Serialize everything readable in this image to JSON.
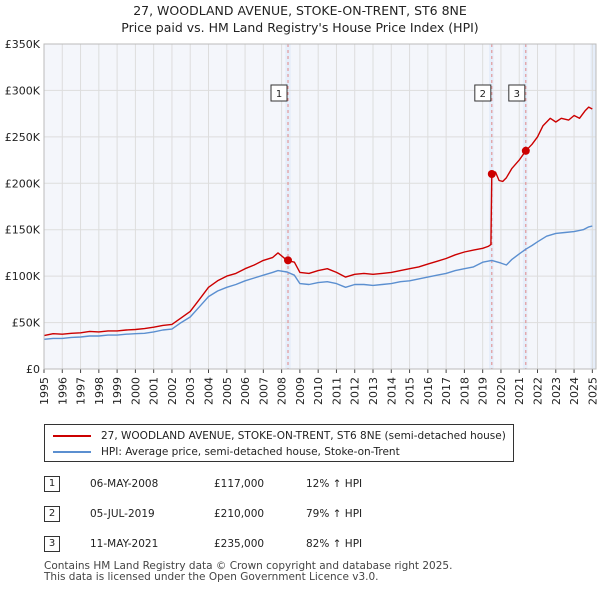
{
  "title": {
    "line1": "27, WOODLAND AVENUE, STOKE-ON-TRENT, ST6 8NE",
    "line2": "Price paid vs. HM Land Registry's House Price Index (HPI)"
  },
  "chart_data": {
    "type": "line",
    "xlim": [
      1995,
      2025.2
    ],
    "ylim": [
      0,
      350000
    ],
    "x_ticks": [
      1995,
      1996,
      1997,
      1998,
      1999,
      2000,
      2001,
      2002,
      2003,
      2004,
      2005,
      2006,
      2007,
      2008,
      2009,
      2010,
      2011,
      2012,
      2013,
      2014,
      2015,
      2016,
      2017,
      2018,
      2019,
      2020,
      2021,
      2022,
      2023,
      2024,
      2025
    ],
    "y_ticks": [
      {
        "value": 0,
        "label": "£0"
      },
      {
        "value": 50000,
        "label": "£50K"
      },
      {
        "value": 100000,
        "label": "£100K"
      },
      {
        "value": 150000,
        "label": "£150K"
      },
      {
        "value": 200000,
        "label": "£200K"
      },
      {
        "value": 250000,
        "label": "£250K"
      },
      {
        "value": 300000,
        "label": "£300K"
      },
      {
        "value": 350000,
        "label": "£350K"
      }
    ],
    "grid": true,
    "colors": {
      "property": "#cc0000",
      "hpi": "#5b8fd0",
      "grid": "#dddddd",
      "bg": "#f4f6fb",
      "vline": "#e08888",
      "shade": "#e6eefa"
    },
    "series": [
      {
        "name": "27, WOODLAND AVENUE, STOKE-ON-TRENT, ST6 8NE (semi-detached house)",
        "color": "#cc0000",
        "points": [
          [
            1995,
            36000
          ],
          [
            1995.5,
            38000
          ],
          [
            1996,
            37500
          ],
          [
            1996.5,
            38500
          ],
          [
            1997,
            39000
          ],
          [
            1997.5,
            40500
          ],
          [
            1998,
            40000
          ],
          [
            1998.5,
            41000
          ],
          [
            1999,
            41000
          ],
          [
            1999.5,
            42000
          ],
          [
            2000,
            42500
          ],
          [
            2000.5,
            43500
          ],
          [
            2001,
            45000
          ],
          [
            2001.5,
            47000
          ],
          [
            2002,
            48000
          ],
          [
            2002.5,
            55000
          ],
          [
            2003,
            62000
          ],
          [
            2003.5,
            75000
          ],
          [
            2004,
            88000
          ],
          [
            2004.5,
            95000
          ],
          [
            2005,
            100000
          ],
          [
            2005.5,
            103000
          ],
          [
            2006,
            108000
          ],
          [
            2006.5,
            112000
          ],
          [
            2007,
            117000
          ],
          [
            2007.5,
            120000
          ],
          [
            2007.8,
            125000
          ],
          [
            2008.3,
            117000
          ],
          [
            2008.7,
            115000
          ],
          [
            2009,
            104000
          ],
          [
            2009.5,
            103000
          ],
          [
            2010,
            106000
          ],
          [
            2010.5,
            108000
          ],
          [
            2011,
            104000
          ],
          [
            2011.5,
            99000
          ],
          [
            2012,
            102000
          ],
          [
            2012.5,
            103000
          ],
          [
            2013,
            102000
          ],
          [
            2013.5,
            103000
          ],
          [
            2014,
            104000
          ],
          [
            2014.5,
            106000
          ],
          [
            2015,
            108000
          ],
          [
            2015.5,
            110000
          ],
          [
            2016,
            113000
          ],
          [
            2016.5,
            116000
          ],
          [
            2017,
            119000
          ],
          [
            2017.5,
            123000
          ],
          [
            2018,
            126000
          ],
          [
            2018.5,
            128000
          ],
          [
            2019,
            130000
          ],
          [
            2019.3,
            132000
          ],
          [
            2019.45,
            134000
          ],
          [
            2019.5,
            210000
          ],
          [
            2019.7,
            212000
          ],
          [
            2019.9,
            203000
          ],
          [
            2020.1,
            202000
          ],
          [
            2020.3,
            206000
          ],
          [
            2020.6,
            216000
          ],
          [
            2021,
            225000
          ],
          [
            2021.36,
            235000
          ],
          [
            2021.7,
            242000
          ],
          [
            2022,
            250000
          ],
          [
            2022.3,
            262000
          ],
          [
            2022.7,
            270000
          ],
          [
            2023,
            266000
          ],
          [
            2023.3,
            270000
          ],
          [
            2023.7,
            268000
          ],
          [
            2024,
            273000
          ],
          [
            2024.3,
            270000
          ],
          [
            2024.6,
            278000
          ],
          [
            2024.8,
            282000
          ],
          [
            2025,
            280000
          ]
        ]
      },
      {
        "name": "HPI: Average price, semi-detached house, Stoke-on-Trent",
        "color": "#5b8fd0",
        "points": [
          [
            1995,
            32000
          ],
          [
            1995.5,
            33000
          ],
          [
            1996,
            33000
          ],
          [
            1996.5,
            34000
          ],
          [
            1997,
            34500
          ],
          [
            1997.5,
            35500
          ],
          [
            1998,
            35500
          ],
          [
            1998.5,
            36500
          ],
          [
            1999,
            36500
          ],
          [
            1999.5,
            37500
          ],
          [
            2000,
            38000
          ],
          [
            2000.5,
            38500
          ],
          [
            2001,
            40000
          ],
          [
            2001.5,
            42000
          ],
          [
            2002,
            43000
          ],
          [
            2002.5,
            50000
          ],
          [
            2003,
            56000
          ],
          [
            2003.5,
            67000
          ],
          [
            2004,
            78000
          ],
          [
            2004.5,
            84000
          ],
          [
            2005,
            88000
          ],
          [
            2005.5,
            91000
          ],
          [
            2006,
            95000
          ],
          [
            2006.5,
            98000
          ],
          [
            2007,
            101000
          ],
          [
            2007.5,
            104000
          ],
          [
            2007.8,
            106000
          ],
          [
            2008.3,
            104500
          ],
          [
            2008.7,
            101000
          ],
          [
            2009,
            92000
          ],
          [
            2009.5,
            91000
          ],
          [
            2010,
            93000
          ],
          [
            2010.5,
            94000
          ],
          [
            2011,
            92000
          ],
          [
            2011.5,
            88000
          ],
          [
            2012,
            91000
          ],
          [
            2012.5,
            91000
          ],
          [
            2013,
            90000
          ],
          [
            2013.5,
            91000
          ],
          [
            2014,
            92000
          ],
          [
            2014.5,
            94000
          ],
          [
            2015,
            95000
          ],
          [
            2015.5,
            97000
          ],
          [
            2016,
            99000
          ],
          [
            2016.5,
            101000
          ],
          [
            2017,
            103000
          ],
          [
            2017.5,
            106000
          ],
          [
            2018,
            108000
          ],
          [
            2018.5,
            110000
          ],
          [
            2019,
            115000
          ],
          [
            2019.5,
            117000
          ],
          [
            2020,
            114000
          ],
          [
            2020.3,
            112000
          ],
          [
            2020.6,
            118000
          ],
          [
            2021,
            124000
          ],
          [
            2021.36,
            129000
          ],
          [
            2021.7,
            133000
          ],
          [
            2022,
            137000
          ],
          [
            2022.5,
            143000
          ],
          [
            2023,
            146000
          ],
          [
            2023.5,
            147000
          ],
          [
            2024,
            148000
          ],
          [
            2024.5,
            150000
          ],
          [
            2024.8,
            153000
          ],
          [
            2025,
            154000
          ]
        ]
      }
    ],
    "sales": [
      {
        "id": "1",
        "x": 2008.35,
        "y": 117000
      },
      {
        "id": "2",
        "x": 2019.5,
        "y": 210000
      },
      {
        "id": "3",
        "x": 2021.36,
        "y": 235000
      }
    ],
    "shade_ranges": [
      [
        2008.2,
        2008.5
      ],
      [
        2019.35,
        2019.6
      ],
      [
        2021.2,
        2021.45
      ],
      [
        2024.9,
        2025.2
      ]
    ]
  },
  "legend": {
    "property_label": "27, WOODLAND AVENUE, STOKE-ON-TRENT, ST6 8NE (semi-detached house)",
    "hpi_label": "HPI: Average price, semi-detached house, Stoke-on-Trent"
  },
  "sales_table": [
    {
      "id": "1",
      "date": "06-MAY-2008",
      "price": "£117,000",
      "hpi": "12% ↑ HPI"
    },
    {
      "id": "2",
      "date": "05-JUL-2019",
      "price": "£210,000",
      "hpi": "79% ↑ HPI"
    },
    {
      "id": "3",
      "date": "11-MAY-2021",
      "price": "£235,000",
      "hpi": "82% ↑ HPI"
    }
  ],
  "footer": {
    "line1": "Contains HM Land Registry data © Crown copyright and database right 2025.",
    "line2": "This data is licensed under the Open Government Licence v3.0."
  }
}
